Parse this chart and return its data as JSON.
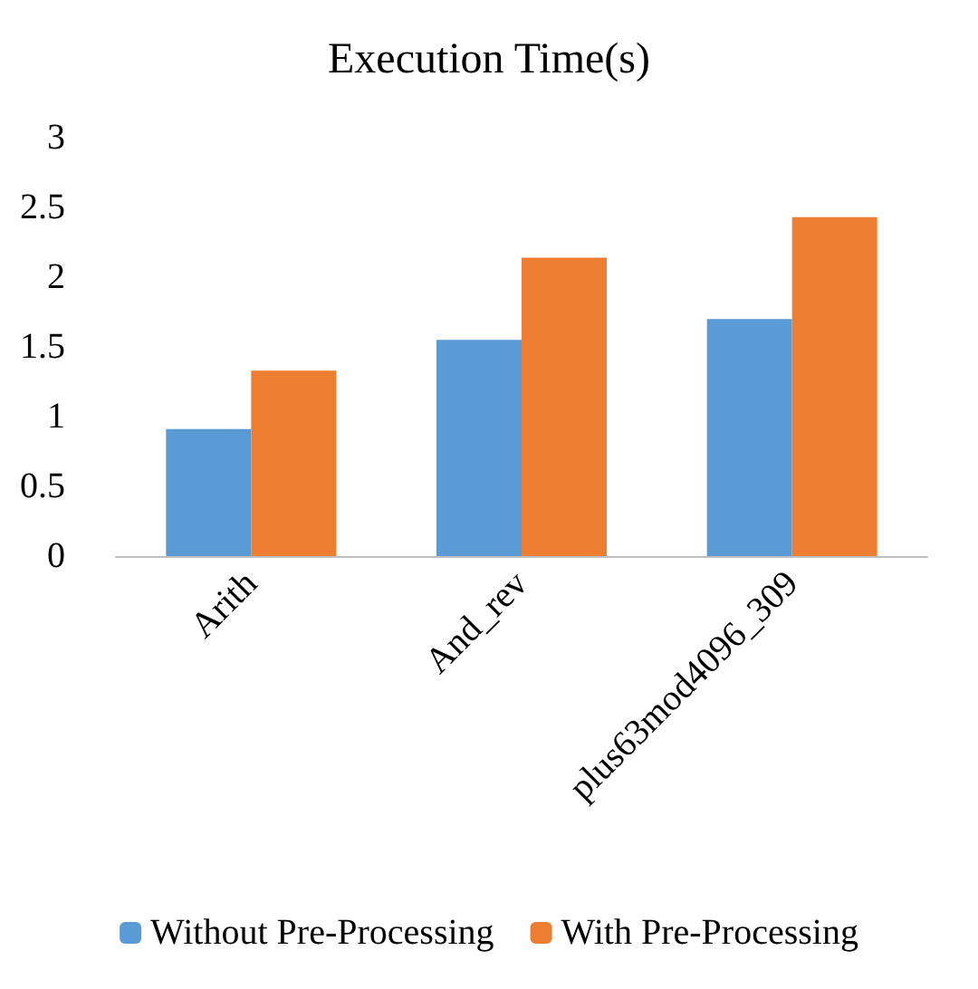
{
  "chart_data": {
    "type": "bar",
    "title": "Execution Time(s)",
    "categories": [
      "Arith",
      "And_rev",
      "plus63mod4096_309"
    ],
    "series": [
      {
        "name": "Without Pre-Processing",
        "color": "#5b9bd5",
        "values": [
          0.91,
          1.55,
          1.7
        ]
      },
      {
        "name": "With Pre-Processing",
        "color": "#ed7d31",
        "values": [
          1.33,
          2.14,
          2.43
        ]
      }
    ],
    "ylim": [
      0,
      3
    ],
    "yticks": [
      0,
      0.5,
      1,
      1.5,
      2,
      2.5,
      3
    ],
    "grid": false,
    "legend": "bottom"
  }
}
